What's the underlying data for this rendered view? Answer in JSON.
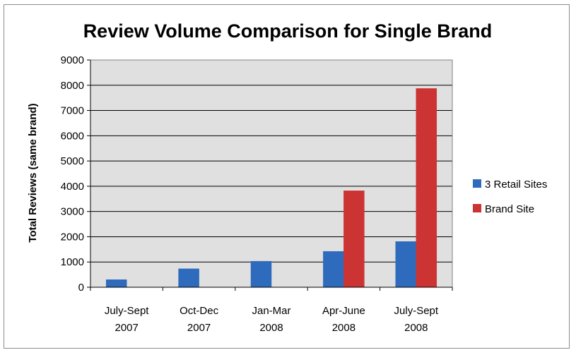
{
  "chart_data": {
    "type": "bar",
    "title": "Review Volume Comparison for Single Brand",
    "xlabel": "",
    "ylabel": "Total Reviews (same brand)",
    "ylim": [
      0,
      9000
    ],
    "yticks": [
      0,
      1000,
      2000,
      3000,
      4000,
      5000,
      6000,
      7000,
      8000,
      9000
    ],
    "categories": [
      [
        "July-Sept",
        "2007"
      ],
      [
        "Oct-Dec",
        "2007"
      ],
      [
        "Jan-Mar",
        "2008"
      ],
      [
        "Apr-June",
        "2008"
      ],
      [
        "July-Sept",
        "2008"
      ]
    ],
    "series": [
      {
        "name": "3 Retail Sites",
        "color": "#2e6bbd",
        "values": [
          300,
          730,
          1030,
          1420,
          1810
        ]
      },
      {
        "name": "Brand Site",
        "color": "#cc3333",
        "values": [
          0,
          0,
          0,
          3820,
          7870
        ]
      }
    ],
    "grid": true,
    "legend_position": "right",
    "plot_background": "#e0e0e0"
  }
}
